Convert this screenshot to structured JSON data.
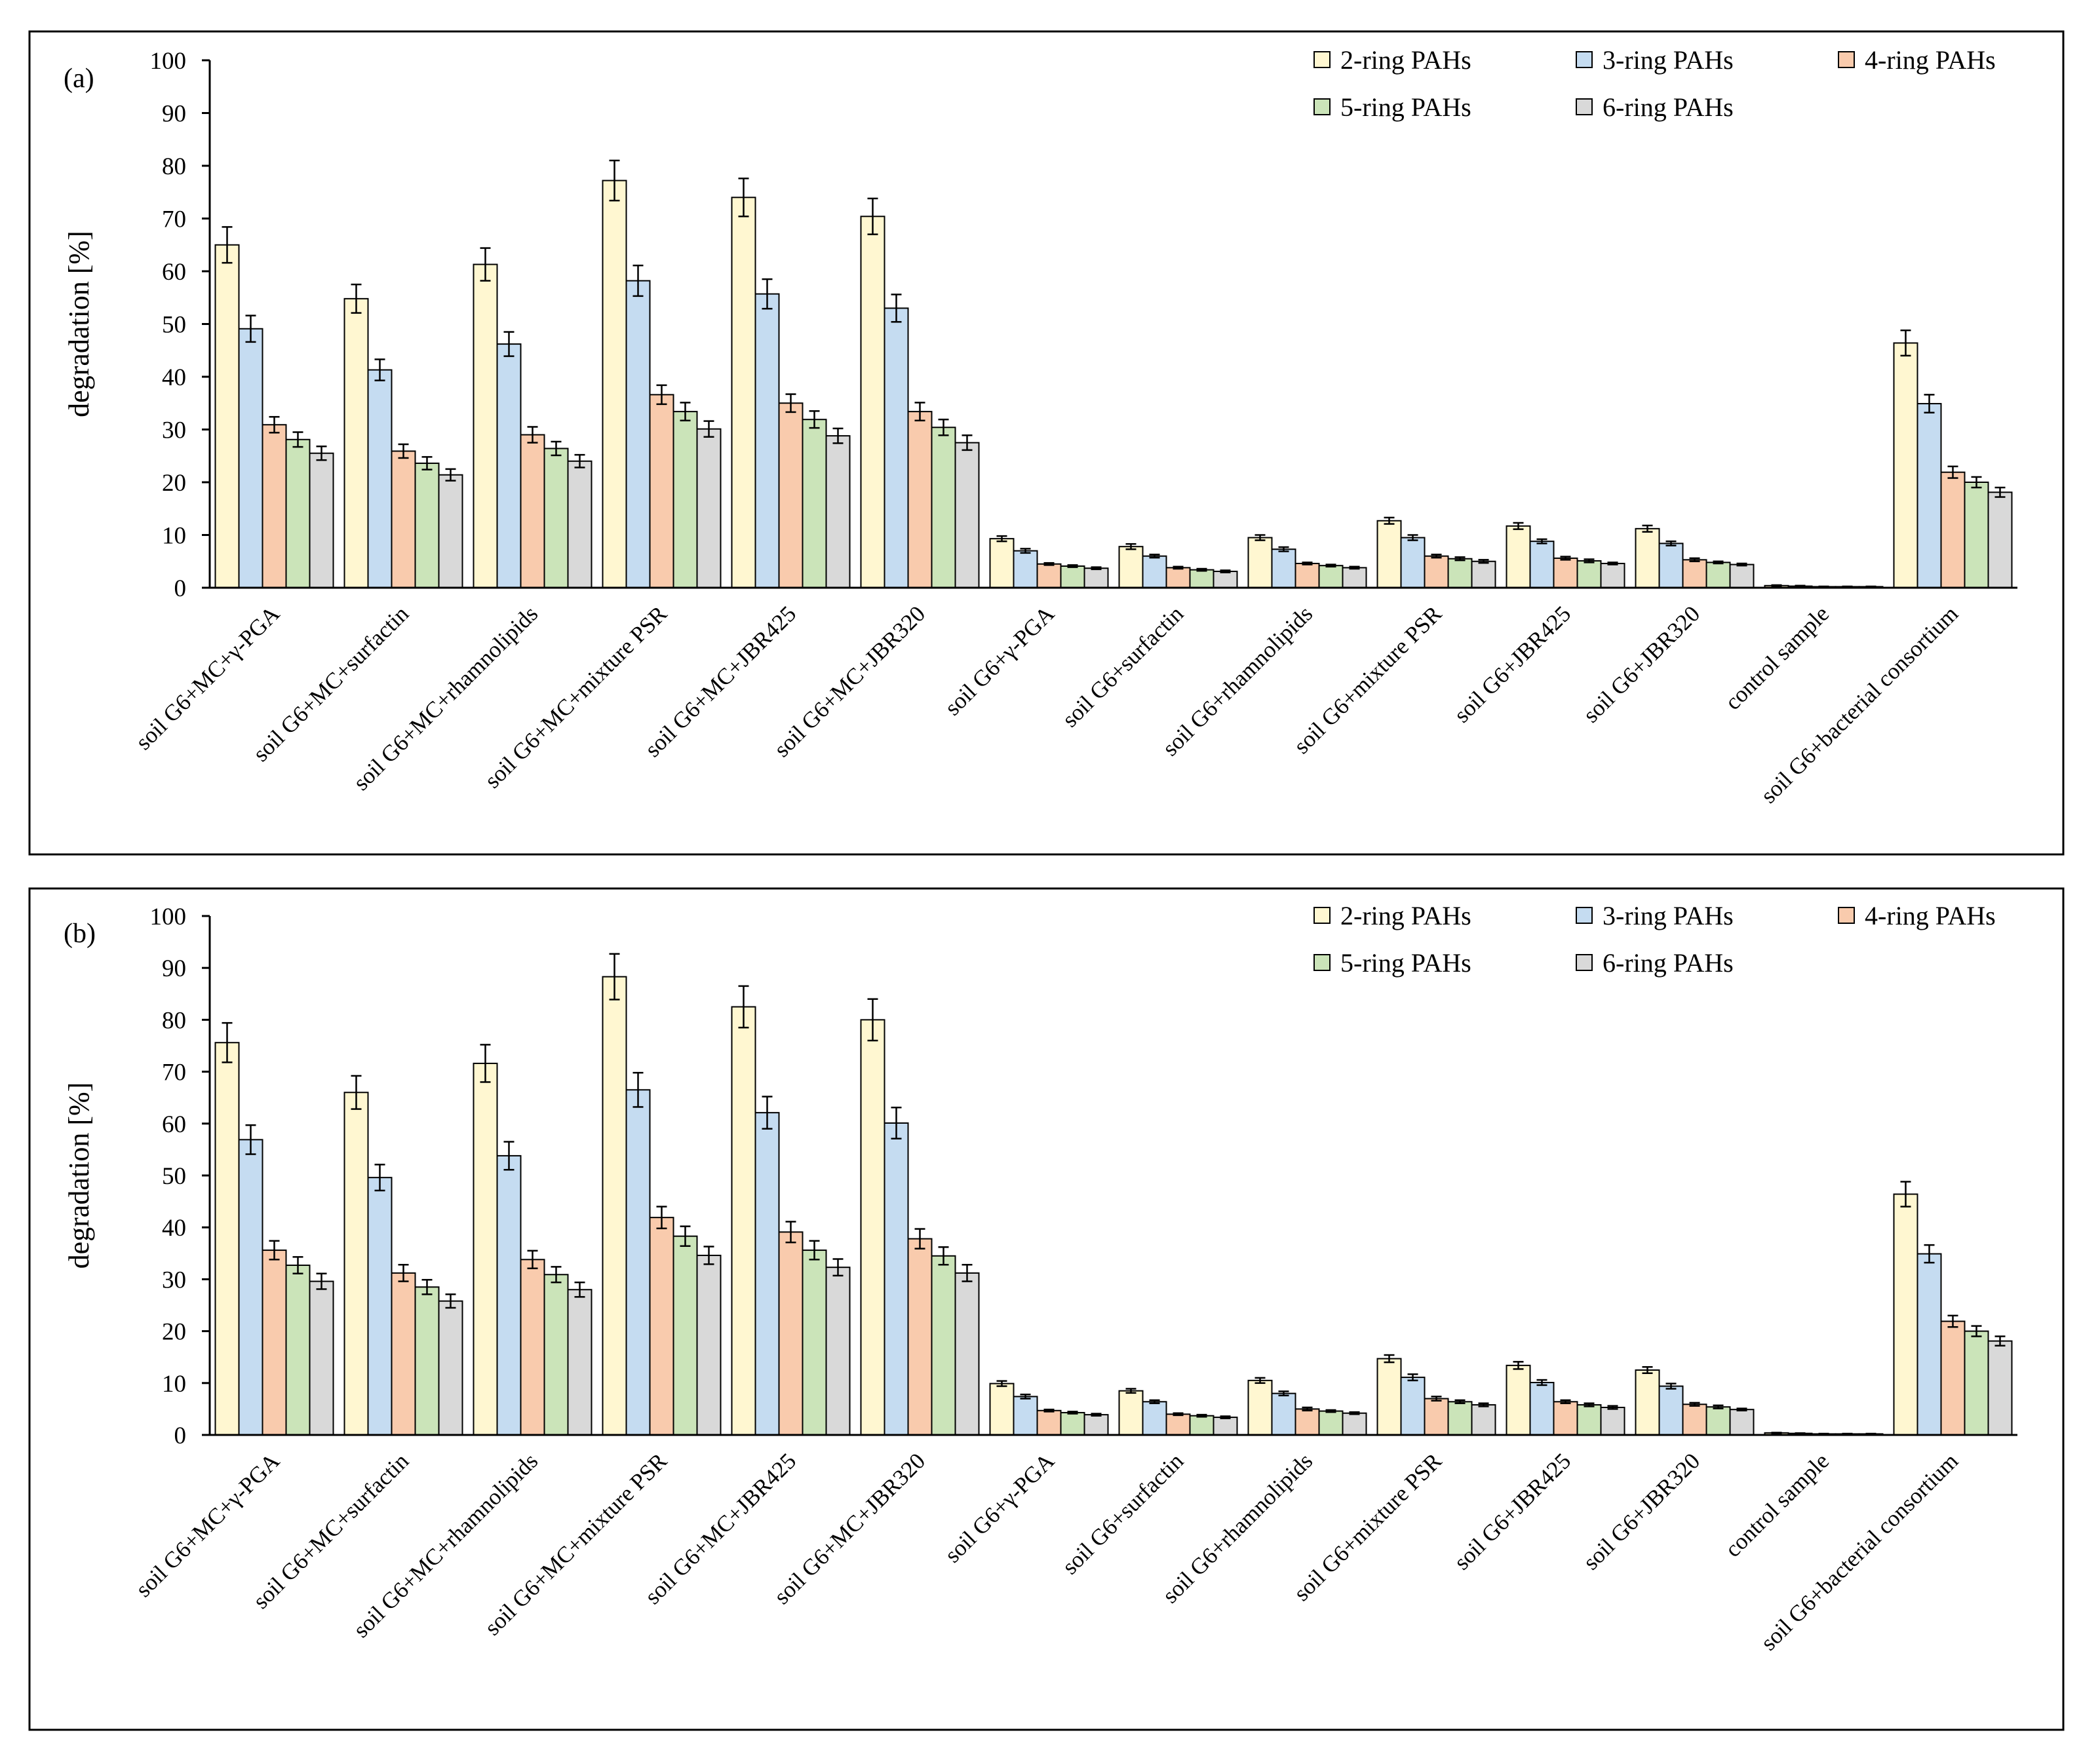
{
  "chart_data": [
    {
      "type": "bar",
      "panel_label": "(a)",
      "ylabel": "degradation [%]",
      "xlabel": "",
      "ylim": [
        0,
        100
      ],
      "yticks": [
        0,
        10,
        20,
        30,
        40,
        50,
        60,
        70,
        80,
        90,
        100
      ],
      "grid": false,
      "legend_position": "top-right",
      "error_bars": true,
      "categories": [
        "soil G6+MC+γ-PGA",
        "soil G6+MC+surfactin",
        "soil G6+MC+rhamnolipids",
        "soil G6+MC+mixture PSR",
        "soil G6+MC+JBR425",
        "soil G6+MC+JBR320",
        "soil G6+γ-PGA",
        "soil G6+surfactin",
        "soil G6+rhamnolipids",
        "soil G6+mixture PSR",
        "soil G6+JBR425",
        "soil G6+JBR320",
        "control sample",
        "soil G6+bacterial consortium"
      ],
      "series": [
        {
          "name": "2-ring PAHs",
          "color": "#FFF7D1",
          "values": [
            65,
            54.8,
            61.3,
            77.2,
            74,
            70.4,
            9.3,
            7.8,
            9.5,
            12.7,
            11.7,
            11.2,
            0.4,
            46.4
          ],
          "errors": [
            3.4,
            2.7,
            3.1,
            3.8,
            3.6,
            3.4,
            0.5,
            0.5,
            0.5,
            0.6,
            0.6,
            0.6,
            0.1,
            2.4
          ]
        },
        {
          "name": "3-ring PAHs",
          "color": "#C5DCF1",
          "values": [
            49.1,
            41.3,
            46.2,
            58.2,
            55.7,
            53,
            7,
            6,
            7.3,
            9.5,
            8.8,
            8.4,
            0.3,
            34.9
          ],
          "errors": [
            2.5,
            2,
            2.3,
            2.9,
            2.8,
            2.6,
            0.4,
            0.3,
            0.4,
            0.5,
            0.4,
            0.4,
            0.1,
            1.7
          ]
        },
        {
          "name": "4-ring PAHs",
          "color": "#F9CBAD",
          "values": [
            30.9,
            25.9,
            29,
            36.6,
            35,
            33.4,
            4.5,
            3.8,
            4.6,
            6,
            5.6,
            5.3,
            0.2,
            21.9
          ],
          "errors": [
            1.5,
            1.3,
            1.5,
            1.8,
            1.7,
            1.7,
            0.2,
            0.2,
            0.2,
            0.3,
            0.3,
            0.3,
            0.05,
            1.1
          ]
        },
        {
          "name": "5-ring PAHs",
          "color": "#CBE4B9",
          "values": [
            28.1,
            23.6,
            26.4,
            33.4,
            31.9,
            30.4,
            4.1,
            3.4,
            4.2,
            5.5,
            5.1,
            4.8,
            0.2,
            20
          ],
          "errors": [
            1.4,
            1.2,
            1.3,
            1.7,
            1.6,
            1.5,
            0.2,
            0.2,
            0.2,
            0.3,
            0.3,
            0.2,
            0.05,
            1
          ]
        },
        {
          "name": "6-ring PAHs",
          "color": "#D9D9D9",
          "values": [
            25.5,
            21.4,
            24,
            30.1,
            28.8,
            27.5,
            3.7,
            3.1,
            3.8,
            5,
            4.6,
            4.4,
            0.2,
            18.1
          ],
          "errors": [
            1.3,
            1.1,
            1.2,
            1.5,
            1.4,
            1.4,
            0.2,
            0.2,
            0.2,
            0.3,
            0.2,
            0.2,
            0.05,
            0.9
          ]
        }
      ]
    },
    {
      "type": "bar",
      "panel_label": "(b)",
      "ylabel": "degradation [%]",
      "xlabel": "",
      "ylim": [
        0,
        100
      ],
      "yticks": [
        0,
        10,
        20,
        30,
        40,
        50,
        60,
        70,
        80,
        90,
        100
      ],
      "grid": false,
      "legend_position": "top-right",
      "error_bars": true,
      "categories": [
        "soil G6+MC+γ-PGA",
        "soil G6+MC+surfactin",
        "soil G6+MC+rhamnolipids",
        "soil G6+MC+mixture PSR",
        "soil G6+MC+JBR425",
        "soil G6+MC+JBR320",
        "soil G6+γ-PGA",
        "soil G6+surfactin",
        "soil G6+rhamnolipids",
        "soil G6+mixture PSR",
        "soil G6+JBR425",
        "soil G6+JBR320",
        "control sample",
        "soil G6+bacterial consortium"
      ],
      "series": [
        {
          "name": "2-ring PAHs",
          "color": "#FFF7D1",
          "values": [
            75.6,
            66,
            71.6,
            88.3,
            82.5,
            80,
            9.9,
            8.5,
            10.5,
            14.7,
            13.4,
            12.5,
            0.4,
            46.4
          ],
          "errors": [
            3.8,
            3.2,
            3.6,
            4.4,
            4,
            4,
            0.5,
            0.4,
            0.5,
            0.7,
            0.7,
            0.6,
            0.05,
            2.4
          ]
        },
        {
          "name": "3-ring PAHs",
          "color": "#C5DCF1",
          "values": [
            56.9,
            49.6,
            53.8,
            66.5,
            62.1,
            60.1,
            7.4,
            6.4,
            8,
            11.1,
            10.1,
            9.4,
            0.3,
            34.9
          ],
          "errors": [
            2.8,
            2.5,
            2.7,
            3.3,
            3.1,
            3,
            0.4,
            0.3,
            0.4,
            0.6,
            0.5,
            0.5,
            0.05,
            1.7
          ]
        },
        {
          "name": "4-ring PAHs",
          "color": "#F9CBAD",
          "values": [
            35.6,
            31.2,
            33.8,
            41.9,
            39.1,
            37.8,
            4.7,
            4,
            5,
            7,
            6.4,
            5.9,
            0.2,
            21.9
          ],
          "errors": [
            1.8,
            1.6,
            1.7,
            2.1,
            2,
            1.9,
            0.2,
            0.2,
            0.3,
            0.4,
            0.3,
            0.3,
            0.05,
            1.1
          ]
        },
        {
          "name": "5-ring PAHs",
          "color": "#CBE4B9",
          "values": [
            32.7,
            28.5,
            30.9,
            38.3,
            35.6,
            34.5,
            4.3,
            3.7,
            4.6,
            6.4,
            5.8,
            5.4,
            0.2,
            20
          ],
          "errors": [
            1.6,
            1.4,
            1.5,
            1.9,
            1.8,
            1.7,
            0.2,
            0.2,
            0.2,
            0.3,
            0.3,
            0.3,
            0.05,
            1
          ]
        },
        {
          "name": "6-ring PAHs",
          "color": "#D9D9D9",
          "values": [
            29.6,
            25.8,
            28,
            34.6,
            32.3,
            31.2,
            3.9,
            3.4,
            4.2,
            5.8,
            5.3,
            4.9,
            0.2,
            18.1
          ],
          "errors": [
            1.5,
            1.3,
            1.4,
            1.7,
            1.6,
            1.6,
            0.2,
            0.2,
            0.2,
            0.3,
            0.3,
            0.2,
            0.05,
            0.9
          ]
        }
      ]
    }
  ]
}
